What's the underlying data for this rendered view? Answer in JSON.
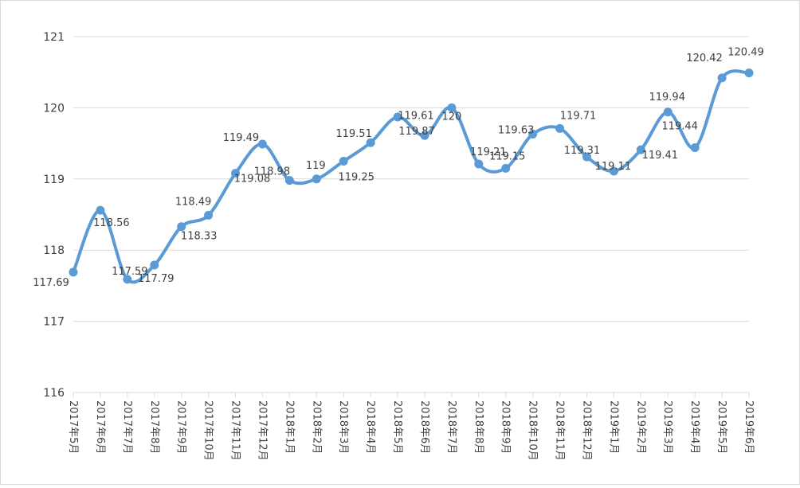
{
  "chart_data": {
    "type": "line",
    "smooth": true,
    "title": "",
    "xlabel": "",
    "ylabel": "",
    "ylim": [
      116,
      121
    ],
    "yticks": [
      116,
      117,
      118,
      119,
      120,
      121
    ],
    "grid": "horizontal",
    "legend": "none",
    "line_color": "#5b9bd5",
    "grid_color": "#d9d9d9",
    "categories": [
      "2017年5月",
      "2017年6月",
      "2017年7月",
      "2017年8月",
      "2017年9月",
      "2017年10月",
      "2017年11月",
      "2017年12月",
      "2018年1月",
      "2018年2月",
      "2018年3月",
      "2018年4月",
      "2018年5月",
      "2018年6月",
      "2018年7月",
      "2018年8月",
      "2018年9月",
      "2018年10月",
      "2018年11月",
      "2018年12月",
      "2019年1月",
      "2019年2月",
      "2019年3月",
      "2019年4月",
      "2019年5月",
      "2019年6月"
    ],
    "values": [
      117.69,
      118.56,
      117.59,
      117.79,
      118.33,
      118.49,
      119.08,
      119.49,
      118.98,
      119,
      119.25,
      119.51,
      119.87,
      119.61,
      120,
      119.21,
      119.15,
      119.63,
      119.71,
      119.31,
      119.11,
      119.41,
      119.94,
      119.44,
      120.42,
      120.49
    ],
    "data_labels": [
      "117.69",
      "118.56",
      "117.59",
      "117.79",
      "118.33",
      "118.49",
      "119.08",
      "119.49",
      "118.98",
      "119",
      "119.25",
      "119.51",
      "119.87",
      "119.61",
      "120",
      "119.21",
      "119.15",
      "119.63",
      "119.71",
      "119.31",
      "119.11",
      "119.41",
      "119.94",
      "119.44",
      "120.42",
      "120.49"
    ]
  }
}
